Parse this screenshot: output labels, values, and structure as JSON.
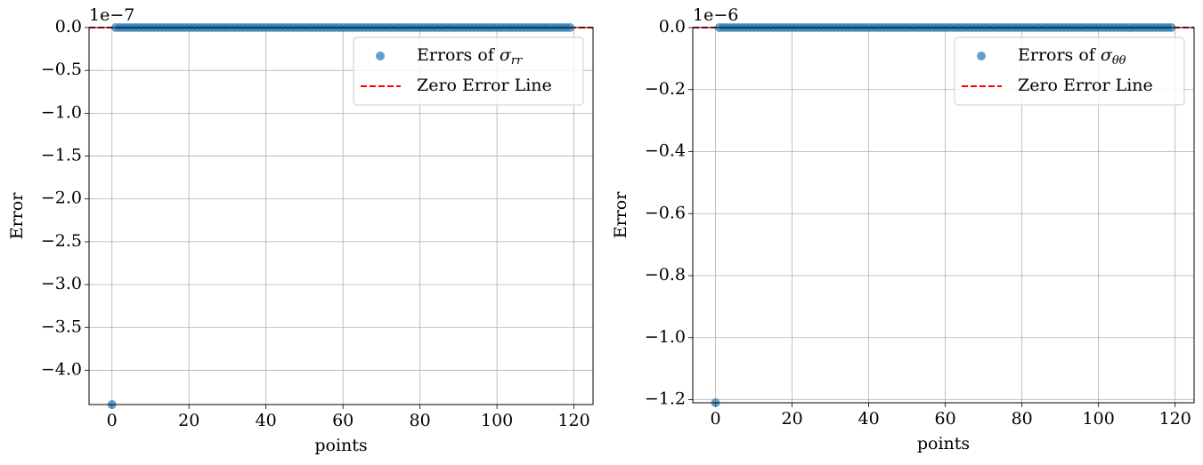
{
  "chart_data": [
    {
      "type": "scatter",
      "offset_text": "1e−7",
      "xlabel": "points",
      "ylabel": "Error",
      "x": [
        0,
        1,
        2,
        3,
        4,
        5,
        6,
        7,
        8,
        9,
        10,
        11,
        12,
        13,
        14,
        15,
        16,
        17,
        18,
        19,
        20,
        21,
        22,
        23,
        24,
        25,
        26,
        27,
        28,
        29,
        30,
        31,
        32,
        33,
        34,
        35,
        36,
        37,
        38,
        39,
        40,
        41,
        42,
        43,
        44,
        45,
        46,
        47,
        48,
        49,
        50,
        51,
        52,
        53,
        54,
        55,
        56,
        57,
        58,
        59,
        60,
        61,
        62,
        63,
        64,
        65,
        66,
        67,
        68,
        69,
        70,
        71,
        72,
        73,
        74,
        75,
        76,
        77,
        78,
        79,
        80,
        81,
        82,
        83,
        84,
        85,
        86,
        87,
        88,
        89,
        90,
        91,
        92,
        93,
        94,
        95,
        96,
        97,
        98,
        99,
        100,
        101,
        102,
        103,
        104,
        105,
        106,
        107,
        108,
        109,
        110,
        111,
        112,
        113,
        114,
        115,
        116,
        117,
        118,
        119
      ],
      "series": [
        {
          "name": "Errors of σrr",
          "color": "#1f77b4",
          "values": [
            -4.4,
            0,
            0,
            0,
            0,
            0,
            0,
            0,
            0,
            0,
            0,
            0,
            0,
            0,
            0,
            0,
            0,
            0,
            0,
            0,
            0,
            0,
            0,
            0,
            0,
            0,
            0,
            0,
            0,
            0,
            0,
            0,
            0,
            0,
            0,
            0,
            0,
            0,
            0,
            0,
            0,
            0,
            0,
            0,
            0,
            0,
            0,
            0,
            0,
            0,
            0,
            0,
            0,
            0,
            0,
            0,
            0,
            0,
            0,
            0,
            0,
            0,
            0,
            0,
            0,
            0,
            0,
            0,
            0,
            0,
            0,
            0,
            0,
            0,
            0,
            0,
            0,
            0,
            0,
            0,
            0,
            0,
            0,
            0,
            0,
            0,
            0,
            0,
            0,
            0,
            0,
            0,
            0,
            0,
            0,
            0,
            0,
            0,
            0,
            0,
            0,
            0,
            0,
            0,
            0,
            0,
            0,
            0,
            0,
            0,
            0,
            0,
            0,
            0,
            0,
            0,
            0,
            0,
            0,
            0
          ]
        }
      ],
      "hline": {
        "name": "Zero Error Line",
        "color": "#ff0000",
        "value": 0
      },
      "xlim": [
        -5.95,
        124.95
      ],
      "xticks": [
        0,
        20,
        40,
        60,
        80,
        100,
        120
      ],
      "ylim": [
        -4.4,
        0
      ],
      "yticks": [
        {
          "value": 0,
          "label": "0.0"
        },
        {
          "value": -0.5,
          "label": "−0.5"
        },
        {
          "value": -1,
          "label": "−1.0"
        },
        {
          "value": -1.5,
          "label": "−1.5"
        },
        {
          "value": -2,
          "label": "−2.0"
        },
        {
          "value": -2.5,
          "label": "−2.5"
        },
        {
          "value": -3,
          "label": "−3.0"
        },
        {
          "value": -3.5,
          "label": "−3.5"
        },
        {
          "value": -4,
          "label": "−4.0"
        }
      ],
      "grid": true,
      "legend": "upper right"
    },
    {
      "type": "scatter",
      "offset_text": "1e−6",
      "xlabel": "points",
      "ylabel": "Error",
      "x": [
        0,
        1,
        2,
        3,
        4,
        5,
        6,
        7,
        8,
        9,
        10,
        11,
        12,
        13,
        14,
        15,
        16,
        17,
        18,
        19,
        20,
        21,
        22,
        23,
        24,
        25,
        26,
        27,
        28,
        29,
        30,
        31,
        32,
        33,
        34,
        35,
        36,
        37,
        38,
        39,
        40,
        41,
        42,
        43,
        44,
        45,
        46,
        47,
        48,
        49,
        50,
        51,
        52,
        53,
        54,
        55,
        56,
        57,
        58,
        59,
        60,
        61,
        62,
        63,
        64,
        65,
        66,
        67,
        68,
        69,
        70,
        71,
        72,
        73,
        74,
        75,
        76,
        77,
        78,
        79,
        80,
        81,
        82,
        83,
        84,
        85,
        86,
        87,
        88,
        89,
        90,
        91,
        92,
        93,
        94,
        95,
        96,
        97,
        98,
        99,
        100,
        101,
        102,
        103,
        104,
        105,
        106,
        107,
        108,
        109,
        110,
        111,
        112,
        113,
        114,
        115,
        116,
        117,
        118,
        119
      ],
      "series": [
        {
          "name": "Errors of σθθ",
          "color": "#1f77b4",
          "values": [
            -1.21,
            0,
            0,
            0,
            0,
            0,
            0,
            0,
            0,
            0,
            0,
            0,
            0,
            0,
            0,
            0,
            0,
            0,
            0,
            0,
            0,
            0,
            0,
            0,
            0,
            0,
            0,
            0,
            0,
            0,
            0,
            0,
            0,
            0,
            0,
            0,
            0,
            0,
            0,
            0,
            0,
            0,
            0,
            0,
            0,
            0,
            0,
            0,
            0,
            0,
            0,
            0,
            0,
            0,
            0,
            0,
            0,
            0,
            0,
            0,
            0,
            0,
            0,
            0,
            0,
            0,
            0,
            0,
            0,
            0,
            0,
            0,
            0,
            0,
            0,
            0,
            0,
            0,
            0,
            0,
            0,
            0,
            0,
            0,
            0,
            0,
            0,
            0,
            0,
            0,
            0,
            0,
            0,
            0,
            0,
            0,
            0,
            0,
            0,
            0,
            0,
            0,
            0,
            0,
            0,
            0,
            0,
            0,
            0,
            0,
            0,
            0,
            0,
            0,
            0,
            0,
            0,
            0,
            0,
            0
          ]
        }
      ],
      "hline": {
        "name": "Zero Error Line",
        "color": "#ff0000",
        "value": 0
      },
      "xlim": [
        -5.95,
        124.95
      ],
      "xticks": [
        0,
        20,
        40,
        60,
        80,
        100,
        120
      ],
      "ylim": [
        -1.21,
        0
      ],
      "yticks": [
        {
          "value": 0,
          "label": "0.0"
        },
        {
          "value": -0.2,
          "label": "−0.2"
        },
        {
          "value": -0.4,
          "label": "−0.4"
        },
        {
          "value": -0.6,
          "label": "−0.6"
        },
        {
          "value": -0.8,
          "label": "−0.8"
        },
        {
          "value": -1,
          "label": "−1.0"
        },
        {
          "value": -1.2,
          "label": "−1.2"
        }
      ],
      "grid": true,
      "legend": "upper right"
    }
  ]
}
